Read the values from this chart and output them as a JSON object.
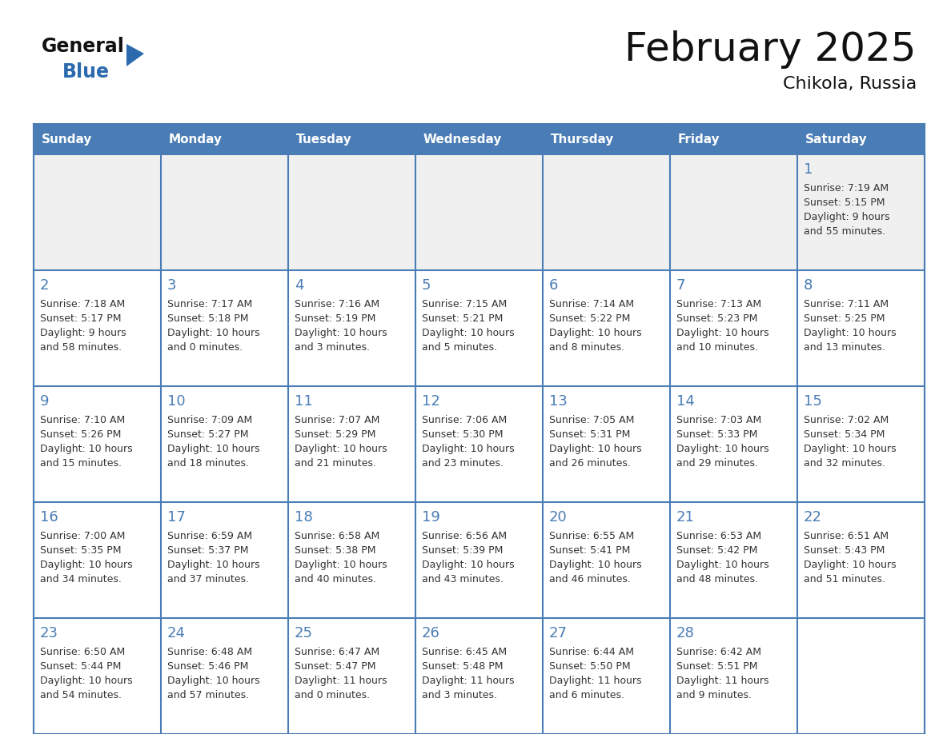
{
  "title": "February 2025",
  "subtitle": "Chikola, Russia",
  "days_of_week": [
    "Sunday",
    "Monday",
    "Tuesday",
    "Wednesday",
    "Thursday",
    "Friday",
    "Saturday"
  ],
  "header_bg": "#4a7db5",
  "header_text_color": "#FFFFFF",
  "cell_bg_light": "#f0f0f0",
  "cell_bg_white": "#FFFFFF",
  "grid_line_color": "#4a7db5",
  "day_number_color": "#4a7db5",
  "text_color": "#333333",
  "title_color": "#111111",
  "logo_general_color": "#111111",
  "logo_blue_color": "#2a6aad",
  "weeks": [
    [
      null,
      null,
      null,
      null,
      null,
      null,
      1
    ],
    [
      2,
      3,
      4,
      5,
      6,
      7,
      8
    ],
    [
      9,
      10,
      11,
      12,
      13,
      14,
      15
    ],
    [
      16,
      17,
      18,
      19,
      20,
      21,
      22
    ],
    [
      23,
      24,
      25,
      26,
      27,
      28,
      null
    ]
  ],
  "cell_data": {
    "1": {
      "sunrise": "7:19 AM",
      "sunset": "5:15 PM",
      "daylight": "9 hours",
      "daylight2": "and 55 minutes."
    },
    "2": {
      "sunrise": "7:18 AM",
      "sunset": "5:17 PM",
      "daylight": "9 hours",
      "daylight2": "and 58 minutes."
    },
    "3": {
      "sunrise": "7:17 AM",
      "sunset": "5:18 PM",
      "daylight": "10 hours",
      "daylight2": "and 0 minutes."
    },
    "4": {
      "sunrise": "7:16 AM",
      "sunset": "5:19 PM",
      "daylight": "10 hours",
      "daylight2": "and 3 minutes."
    },
    "5": {
      "sunrise": "7:15 AM",
      "sunset": "5:21 PM",
      "daylight": "10 hours",
      "daylight2": "and 5 minutes."
    },
    "6": {
      "sunrise": "7:14 AM",
      "sunset": "5:22 PM",
      "daylight": "10 hours",
      "daylight2": "and 8 minutes."
    },
    "7": {
      "sunrise": "7:13 AM",
      "sunset": "5:23 PM",
      "daylight": "10 hours",
      "daylight2": "and 10 minutes."
    },
    "8": {
      "sunrise": "7:11 AM",
      "sunset": "5:25 PM",
      "daylight": "10 hours",
      "daylight2": "and 13 minutes."
    },
    "9": {
      "sunrise": "7:10 AM",
      "sunset": "5:26 PM",
      "daylight": "10 hours",
      "daylight2": "and 15 minutes."
    },
    "10": {
      "sunrise": "7:09 AM",
      "sunset": "5:27 PM",
      "daylight": "10 hours",
      "daylight2": "and 18 minutes."
    },
    "11": {
      "sunrise": "7:07 AM",
      "sunset": "5:29 PM",
      "daylight": "10 hours",
      "daylight2": "and 21 minutes."
    },
    "12": {
      "sunrise": "7:06 AM",
      "sunset": "5:30 PM",
      "daylight": "10 hours",
      "daylight2": "and 23 minutes."
    },
    "13": {
      "sunrise": "7:05 AM",
      "sunset": "5:31 PM",
      "daylight": "10 hours",
      "daylight2": "and 26 minutes."
    },
    "14": {
      "sunrise": "7:03 AM",
      "sunset": "5:33 PM",
      "daylight": "10 hours",
      "daylight2": "and 29 minutes."
    },
    "15": {
      "sunrise": "7:02 AM",
      "sunset": "5:34 PM",
      "daylight": "10 hours",
      "daylight2": "and 32 minutes."
    },
    "16": {
      "sunrise": "7:00 AM",
      "sunset": "5:35 PM",
      "daylight": "10 hours",
      "daylight2": "and 34 minutes."
    },
    "17": {
      "sunrise": "6:59 AM",
      "sunset": "5:37 PM",
      "daylight": "10 hours",
      "daylight2": "and 37 minutes."
    },
    "18": {
      "sunrise": "6:58 AM",
      "sunset": "5:38 PM",
      "daylight": "10 hours",
      "daylight2": "and 40 minutes."
    },
    "19": {
      "sunrise": "6:56 AM",
      "sunset": "5:39 PM",
      "daylight": "10 hours",
      "daylight2": "and 43 minutes."
    },
    "20": {
      "sunrise": "6:55 AM",
      "sunset": "5:41 PM",
      "daylight": "10 hours",
      "daylight2": "and 46 minutes."
    },
    "21": {
      "sunrise": "6:53 AM",
      "sunset": "5:42 PM",
      "daylight": "10 hours",
      "daylight2": "and 48 minutes."
    },
    "22": {
      "sunrise": "6:51 AM",
      "sunset": "5:43 PM",
      "daylight": "10 hours",
      "daylight2": "and 51 minutes."
    },
    "23": {
      "sunrise": "6:50 AM",
      "sunset": "5:44 PM",
      "daylight": "10 hours",
      "daylight2": "and 54 minutes."
    },
    "24": {
      "sunrise": "6:48 AM",
      "sunset": "5:46 PM",
      "daylight": "10 hours",
      "daylight2": "and 57 minutes."
    },
    "25": {
      "sunrise": "6:47 AM",
      "sunset": "5:47 PM",
      "daylight": "11 hours",
      "daylight2": "and 0 minutes."
    },
    "26": {
      "sunrise": "6:45 AM",
      "sunset": "5:48 PM",
      "daylight": "11 hours",
      "daylight2": "and 3 minutes."
    },
    "27": {
      "sunrise": "6:44 AM",
      "sunset": "5:50 PM",
      "daylight": "11 hours",
      "daylight2": "and 6 minutes."
    },
    "28": {
      "sunrise": "6:42 AM",
      "sunset": "5:51 PM",
      "daylight": "11 hours",
      "daylight2": "and 9 minutes."
    }
  },
  "figsize": [
    11.88,
    9.18
  ],
  "dpi": 100
}
